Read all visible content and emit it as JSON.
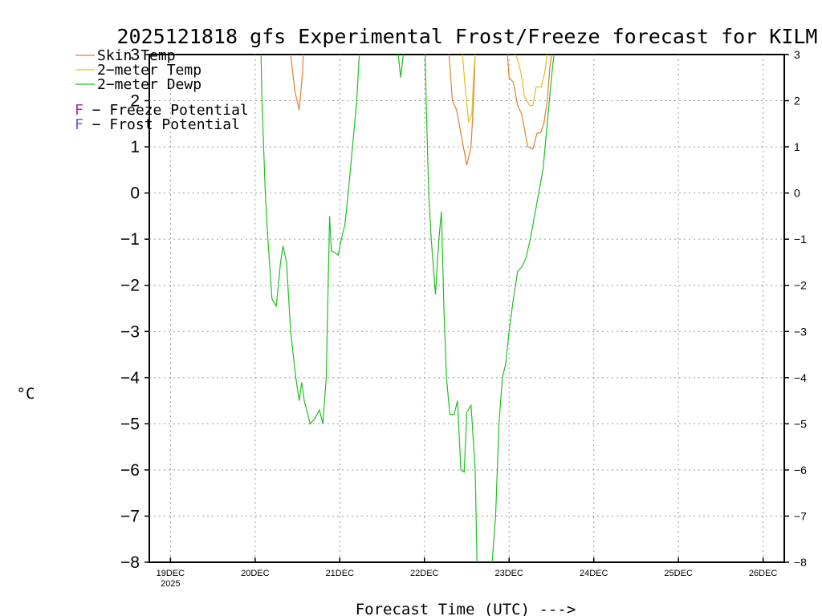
{
  "chart_data": {
    "type": "line",
    "title": "2025121818 gfs Experimental Frost/Freeze forecast for KILM",
    "xlabel": "Forecast Time (UTC) --->",
    "ylabel": "°C",
    "ylim": [
      -8,
      3
    ],
    "xlim": [
      -0.25,
      7.25
    ],
    "yticks": [
      -8,
      -7,
      -6,
      -5,
      -4,
      -3,
      -2,
      -1,
      0,
      1,
      2,
      3
    ],
    "yticklabels": [
      "-8",
      "-7",
      "-6",
      "-5",
      "-4",
      "-3",
      "-2",
      "-1",
      "0",
      "1",
      "2",
      "3"
    ],
    "yticklabels_right": [
      "-8",
      "-7",
      "-6",
      "-5",
      "-4",
      "-3",
      "-2",
      "-1",
      "0",
      "1",
      "2",
      "3"
    ],
    "xticks": [
      0,
      1,
      2,
      3,
      4,
      5,
      6,
      7
    ],
    "xticklabels": [
      "19DEC",
      "20DEC",
      "21DEC",
      "22DEC",
      "23DEC",
      "24DEC",
      "25DEC",
      "26DEC"
    ],
    "xticksub": "2025",
    "grid": true,
    "legend": [
      {
        "label": "Skin Temp",
        "color": "#e08030"
      },
      {
        "label": "2-meter Temp",
        "color": "#e0c020"
      },
      {
        "label": "2-meter Dewp",
        "color": "#20c020"
      }
    ],
    "notes": [
      {
        "letter": "F",
        "text": " - Freeze Potential",
        "color": "#c020a0"
      },
      {
        "letter": "F",
        "text": " - Frost Potential",
        "color": "#6060e0"
      }
    ],
    "series": [
      {
        "name": "Skin Temp",
        "color": "#e08030",
        "segments": [
          [
            [
              1.42,
              3.0
            ],
            [
              1.47,
              2.2
            ],
            [
              1.52,
              1.8
            ],
            [
              1.56,
              2.6
            ],
            [
              1.57,
              3.0
            ]
          ],
          [
            [
              3.29,
              3.0
            ],
            [
              3.33,
              2.0
            ],
            [
              3.38,
              1.8
            ],
            [
              3.44,
              1.2
            ],
            [
              3.5,
              0.6
            ],
            [
              3.55,
              1.0
            ],
            [
              3.58,
              2.0
            ],
            [
              3.6,
              3.0
            ]
          ],
          [
            [
              3.98,
              3.0
            ],
            [
              4.0,
              2.5
            ],
            [
              4.05,
              2.4
            ],
            [
              4.1,
              1.9
            ],
            [
              4.15,
              1.7
            ],
            [
              4.22,
              1.0
            ],
            [
              4.28,
              0.95
            ],
            [
              4.33,
              1.3
            ],
            [
              4.37,
              1.3
            ],
            [
              4.41,
              1.5
            ],
            [
              4.45,
              2.0
            ],
            [
              4.48,
              2.7
            ],
            [
              4.5,
              3.0
            ]
          ]
        ]
      },
      {
        "name": "2-meter Temp",
        "color": "#e0c020",
        "segments": [
          [
            [
              3.45,
              3.0
            ],
            [
              3.48,
              2.3
            ],
            [
              3.52,
              1.55
            ],
            [
              3.56,
              1.7
            ],
            [
              3.58,
              2.5
            ],
            [
              3.6,
              3.0
            ]
          ],
          [
            [
              4.07,
              3.0
            ],
            [
              4.1,
              2.9
            ],
            [
              4.14,
              2.6
            ],
            [
              4.18,
              2.1
            ],
            [
              4.24,
              1.9
            ],
            [
              4.28,
              1.9
            ],
            [
              4.32,
              2.3
            ],
            [
              4.38,
              2.3
            ],
            [
              4.42,
              2.6
            ],
            [
              4.45,
              3.0
            ]
          ]
        ]
      },
      {
        "name": "2-meter Dewp",
        "color": "#20c020",
        "segments": [
          [
            [
              1.07,
              3.0
            ],
            [
              1.08,
              2.0
            ],
            [
              1.12,
              0.0
            ],
            [
              1.15,
              -1.0
            ],
            [
              1.2,
              -2.3
            ],
            [
              1.25,
              -2.45
            ],
            [
              1.3,
              -1.5
            ],
            [
              1.33,
              -1.15
            ],
            [
              1.37,
              -1.5
            ],
            [
              1.42,
              -3.0
            ],
            [
              1.48,
              -4.0
            ],
            [
              1.52,
              -4.5
            ],
            [
              1.55,
              -4.1
            ],
            [
              1.58,
              -4.5
            ],
            [
              1.65,
              -5.0
            ],
            [
              1.7,
              -4.9
            ],
            [
              1.76,
              -4.7
            ],
            [
              1.8,
              -5.0
            ],
            [
              1.84,
              -4.0
            ],
            [
              1.88,
              -0.5
            ],
            [
              1.9,
              -1.25
            ],
            [
              1.95,
              -1.3
            ],
            [
              1.98,
              -1.35
            ],
            [
              2.03,
              -0.9
            ],
            [
              2.06,
              -0.7
            ],
            [
              2.1,
              0.0
            ],
            [
              2.15,
              1.0
            ],
            [
              2.2,
              2.0
            ],
            [
              2.23,
              3.0
            ]
          ],
          [
            [
              2.69,
              3.0
            ],
            [
              2.72,
              2.5
            ],
            [
              2.75,
              3.0
            ]
          ],
          [
            [
              3.01,
              3.0
            ],
            [
              3.02,
              2.0
            ],
            [
              3.05,
              0.0
            ],
            [
              3.08,
              -1.0
            ],
            [
              3.13,
              -2.2
            ],
            [
              3.17,
              -1.0
            ],
            [
              3.2,
              -0.4
            ],
            [
              3.23,
              -2.5
            ],
            [
              3.26,
              -4.0
            ],
            [
              3.3,
              -4.8
            ],
            [
              3.35,
              -4.8
            ],
            [
              3.39,
              -4.5
            ],
            [
              3.43,
              -6.0
            ],
            [
              3.47,
              -6.05
            ],
            [
              3.5,
              -4.75
            ],
            [
              3.55,
              -4.6
            ],
            [
              3.6,
              -6.0
            ],
            [
              3.62,
              -8.0
            ]
          ],
          [
            [
              3.8,
              -8.0
            ],
            [
              3.84,
              -7.0
            ],
            [
              3.88,
              -5.0
            ],
            [
              3.92,
              -4.0
            ],
            [
              3.96,
              -3.7
            ],
            [
              4.0,
              -3.0
            ],
            [
              4.05,
              -2.3
            ],
            [
              4.1,
              -1.7
            ],
            [
              4.15,
              -1.6
            ],
            [
              4.2,
              -1.4
            ],
            [
              4.25,
              -1.0
            ],
            [
              4.3,
              -0.5
            ],
            [
              4.35,
              0.0
            ],
            [
              4.4,
              0.5
            ],
            [
              4.45,
              1.5
            ],
            [
              4.5,
              2.5
            ],
            [
              4.53,
              3.0
            ]
          ]
        ]
      }
    ]
  }
}
